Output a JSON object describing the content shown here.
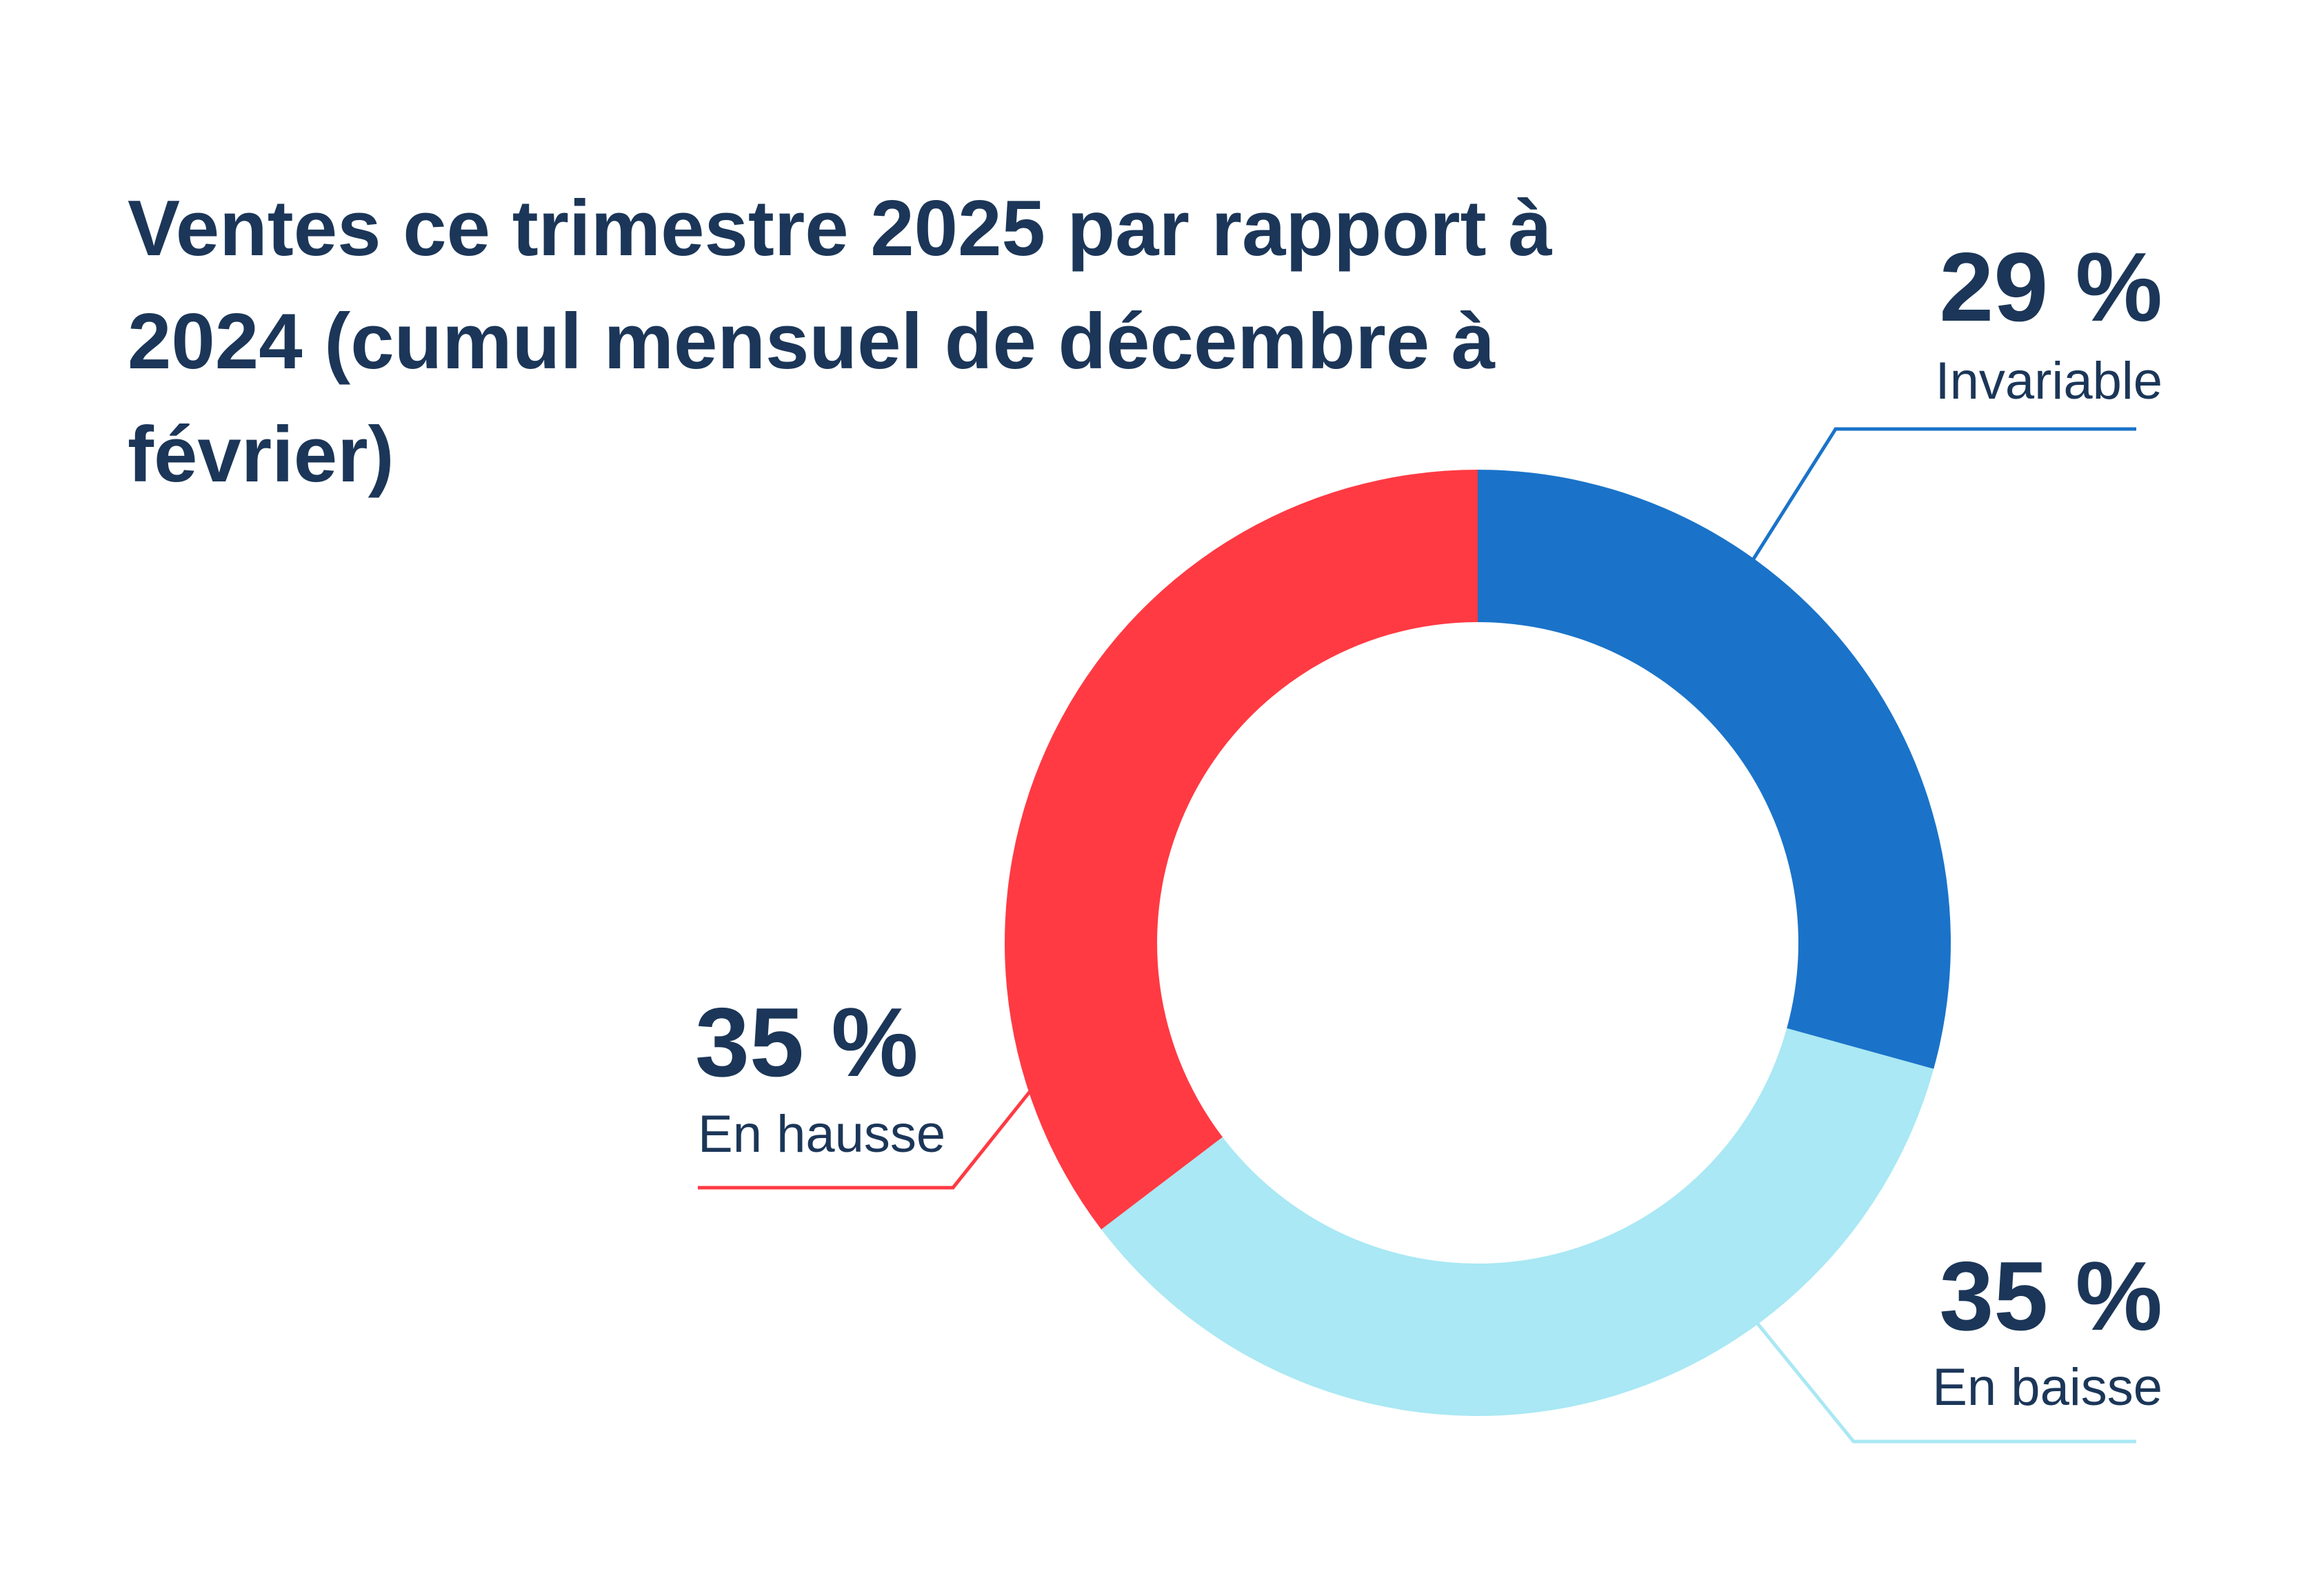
{
  "chart_data": {
    "type": "pie",
    "variant": "donut",
    "title": "Ventes ce trimestre 2025 par rapport à 2024 (cumul mensuel de décembre à février)",
    "slices": [
      {
        "label": "Invariable",
        "value": 29,
        "value_label": "29 %",
        "color": "#1a73c9"
      },
      {
        "label": "En baisse",
        "value": 35,
        "value_label": "35 %",
        "color": "#a9e8f4"
      },
      {
        "label": "En hausse",
        "value": 35,
        "value_label": "35 %",
        "color": "#ff3a43"
      }
    ],
    "legend": "none"
  }
}
